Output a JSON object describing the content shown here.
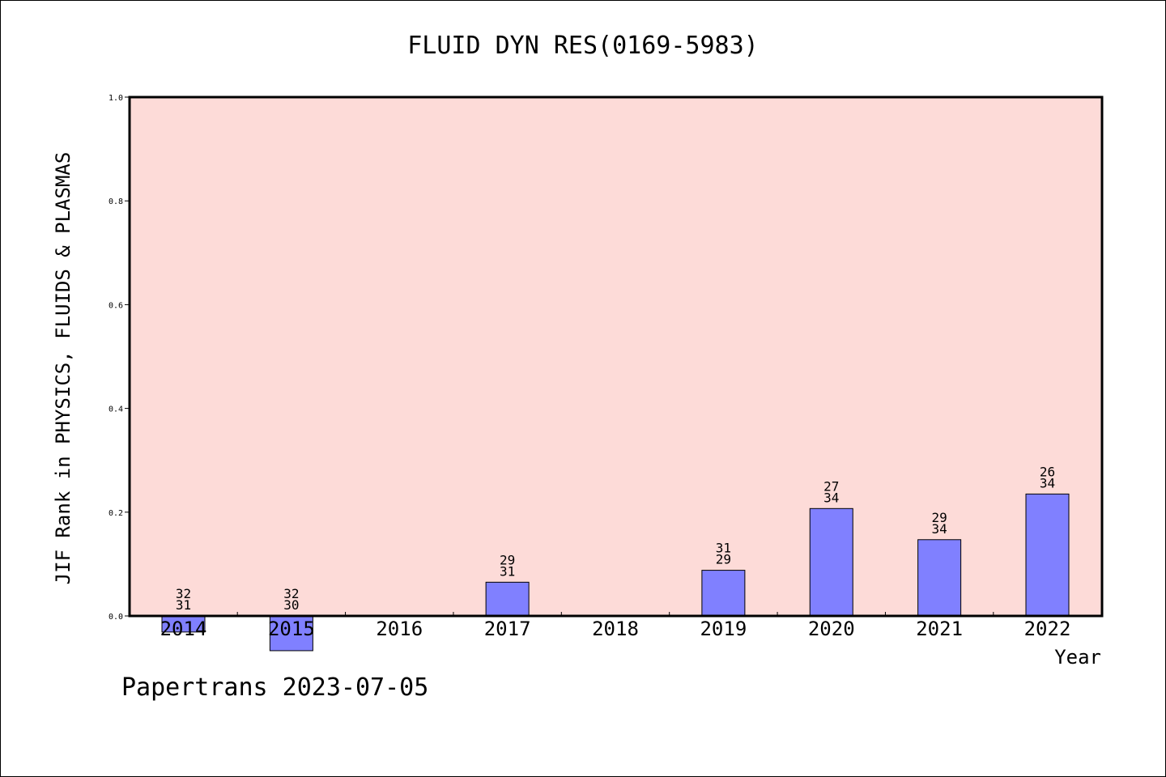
{
  "chart_data": {
    "type": "bar",
    "title": "FLUID DYN RES(0169-5983)",
    "xlabel": "Year",
    "ylabel": "JIF Rank in PHYSICS, FLUIDS & PLASMAS",
    "categories": [
      "2014",
      "2015",
      "2016",
      "2017",
      "2018",
      "2019",
      "2020",
      "2021",
      "2022"
    ],
    "values": [
      -0.031,
      -0.067,
      null,
      0.065,
      null,
      0.088,
      0.207,
      0.147,
      0.235
    ],
    "rank_labels": [
      "32",
      "32",
      "",
      "29",
      "",
      "31",
      "27",
      "29",
      "26"
    ],
    "total_labels": [
      "31",
      "30",
      "",
      "31",
      "",
      "29",
      "34",
      "34",
      "34"
    ],
    "ylim": [
      0,
      1.0
    ],
    "yticks": [
      "0.0",
      "0.2",
      "0.4",
      "0.6",
      "0.8",
      "1.0"
    ],
    "grid": false,
    "colors": {
      "plot_bg": "#fddbd8",
      "bar": "#8080ff",
      "bar_edge": "#000000"
    }
  },
  "footer": "Papertrans 2023-07-05"
}
